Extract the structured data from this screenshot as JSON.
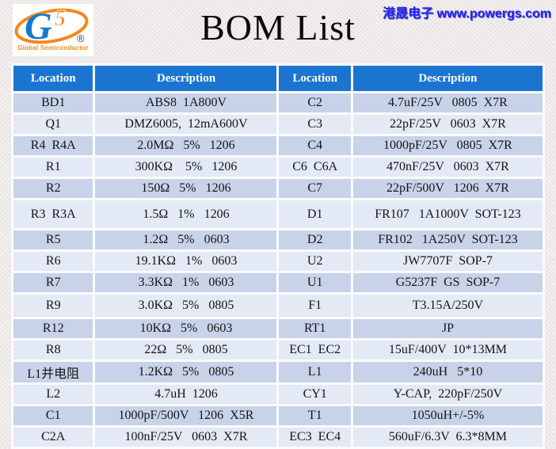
{
  "page": {
    "title": "BOM List",
    "watermark": "港晟电子 www.powergs.com"
  },
  "logo": {
    "g_letter": "G",
    "five_digit": "5",
    "registered_mark": "®",
    "caption": "Global Semiconductor"
  },
  "colors": {
    "header_blue": "#1b75d0",
    "row_dark": "#c8d3e9",
    "row_light": "#e3e9f5",
    "watermark_blue": "#2222ee",
    "logo_orange": "#f08a1d",
    "logo_blue": "#1578cf",
    "background": "#f4f0ef"
  },
  "table": {
    "headers": [
      "Location",
      "Description",
      "Location",
      "Description"
    ],
    "rows": [
      {
        "loc1": "BD1",
        "desc1": "ABS8  1A800V",
        "loc2": "C2",
        "desc2": "4.7uF/25V   0805  X7R"
      },
      {
        "loc1": "Q1",
        "desc1": "DMZ6005,  12mA600V",
        "loc2": "C3",
        "desc2": "22pF/25V   0603  X7R"
      },
      {
        "loc1": "R4  R4A",
        "desc1": "2.0MΩ   5%   1206",
        "loc2": "C4",
        "desc2": "1000pF/25V   0805  X7R"
      },
      {
        "loc1": "R1",
        "desc1": "300KΩ    5%   1206",
        "loc2": "C6  C6A",
        "desc2": "470nF/25V   0603  X7R"
      },
      {
        "loc1": "R2",
        "desc1": "150Ω   5%   1206",
        "loc2": "C7",
        "desc2": "22pF/500V   1206  X7R"
      },
      {
        "loc1": "R3  R3A",
        "desc1": "1.5Ω   1%   1206",
        "loc2": "D1",
        "desc2": "FR107   1A1000V  SOT-123"
      },
      {
        "loc1": "R5",
        "desc1": "1.2Ω   5%   0603",
        "loc2": "D2",
        "desc2": "FR102   1A250V  SOT-123"
      },
      {
        "loc1": "R6",
        "desc1": "19.1KΩ   1%   0603",
        "loc2": "U2",
        "desc2": "JW7707F  SOP-7"
      },
      {
        "loc1": "R7",
        "desc1": "3.3KΩ   1%   0603",
        "loc2": "U1",
        "desc2": "G5237F  GS  SOP-7"
      },
      {
        "loc1": "R9",
        "desc1": "3.0KΩ   5%   0805",
        "loc2": "F1",
        "desc2": "T3.15A/250V"
      },
      {
        "loc1": "R12",
        "desc1": "10KΩ   5%   0603",
        "loc2": "RT1",
        "desc2": "JP"
      },
      {
        "loc1": "R8",
        "desc1": "22Ω   5%   0805",
        "loc2": "EC1  EC2",
        "desc2": "15uF/400V  10*13MM"
      },
      {
        "loc1": "L1并电阻",
        "desc1": "1.2KΩ   5%   0805",
        "loc2": "L1",
        "desc2": "240uH   5*10"
      },
      {
        "loc1": "L2",
        "desc1": "4.7uH  1206",
        "loc2": "CY1",
        "desc2": "Y-CAP,  220pF/250V"
      },
      {
        "loc1": "C1",
        "desc1": "1000pF/500V   1206  X5R",
        "loc2": "T1",
        "desc2": "1050uH+/-5%"
      },
      {
        "loc1": "C2A",
        "desc1": "100nF/25V   0603  X7R",
        "loc2": "EC3  EC4",
        "desc2": "560uF/6.3V  6.3*8MM"
      }
    ]
  }
}
